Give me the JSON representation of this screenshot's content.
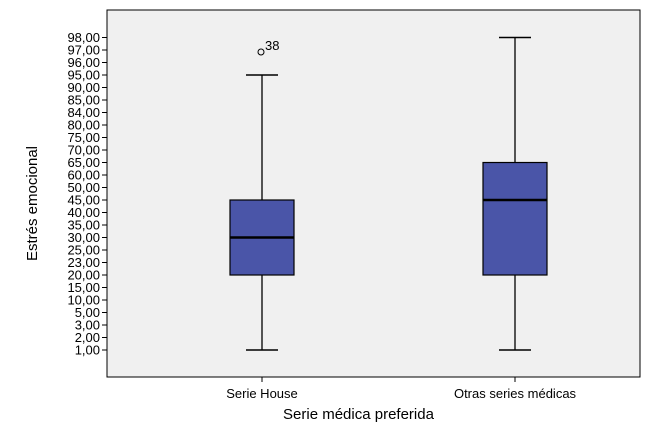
{
  "chart_data": {
    "type": "box",
    "xlabel": "Serie médica preferida",
    "ylabel": "Estrés emocional",
    "y_ticks": [
      "1,00",
      "2,00",
      "3,00",
      "5,00",
      "10,00",
      "15,00",
      "20,00",
      "23,00",
      "25,00",
      "30,00",
      "35,00",
      "40,00",
      "45,00",
      "50,00",
      "60,00",
      "65,00",
      "70,00",
      "75,00",
      "80,00",
      "84,00",
      "85,00",
      "90,00",
      "95,00",
      "96,00",
      "97,00",
      "98,00"
    ],
    "categories": [
      "Serie House",
      "Otras series médicas"
    ],
    "boxes": [
      {
        "category": "Serie House",
        "min_rank": 0,
        "q1_rank": 6,
        "median_rank": 9,
        "q3_rank": 12,
        "max_rank": 22,
        "outliers": [
          {
            "rank": 24,
            "label": "38"
          }
        ]
      },
      {
        "category": "Otras series médicas",
        "min_rank": 0,
        "q1_rank": 6,
        "median_rank": 12,
        "q3_rank": 15,
        "max_rank": 25,
        "outliers": []
      }
    ],
    "colors": {
      "box_fill": "#4a55a8",
      "median": "#000000",
      "plot_bg": "#f0f0f0",
      "frame": "#000000"
    }
  }
}
